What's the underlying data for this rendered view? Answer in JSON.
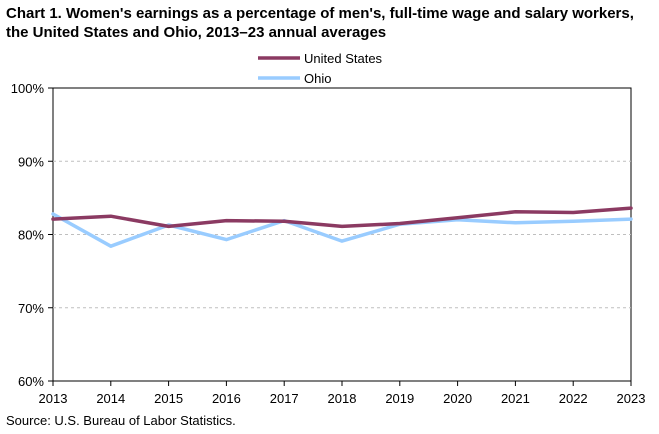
{
  "title": "Chart 1. Women's earnings as a percentage of men's, full-time wage and salary workers, the United States and Ohio, 2013–23 annual averages",
  "source": "Source:  U.S. Bureau of Labor Statistics.",
  "chart_data": {
    "type": "line",
    "title": "Chart 1. Women's earnings as a percentage of men's, full-time wage and salary workers, the United States and Ohio, 2013–23 annual averages",
    "x": [
      2013,
      2014,
      2015,
      2016,
      2017,
      2018,
      2019,
      2020,
      2021,
      2022,
      2023
    ],
    "x_tick_labels": [
      "2013",
      "2014",
      "2015",
      "2016",
      "2017",
      "2018",
      "2019",
      "2020",
      "2021",
      "2022",
      "2023"
    ],
    "y_tick_labels": [
      "100%",
      "90%",
      "80%",
      "70%",
      "60%"
    ],
    "y_ticks": [
      100,
      90,
      80,
      70,
      60
    ],
    "ylim": [
      60,
      100
    ],
    "xlim": [
      2013,
      2023
    ],
    "grid": true,
    "legend_position": "top-center",
    "series": [
      {
        "name": "United States",
        "color": "#8B3A62",
        "values": [
          82.1,
          82.5,
          81.1,
          81.9,
          81.8,
          81.1,
          81.5,
          82.3,
          83.1,
          83.0,
          83.6
        ]
      },
      {
        "name": "Ohio",
        "color": "#99CCFF",
        "values": [
          82.8,
          78.4,
          81.3,
          79.3,
          81.9,
          79.1,
          81.4,
          82.0,
          81.6,
          81.8,
          82.1
        ]
      }
    ]
  }
}
